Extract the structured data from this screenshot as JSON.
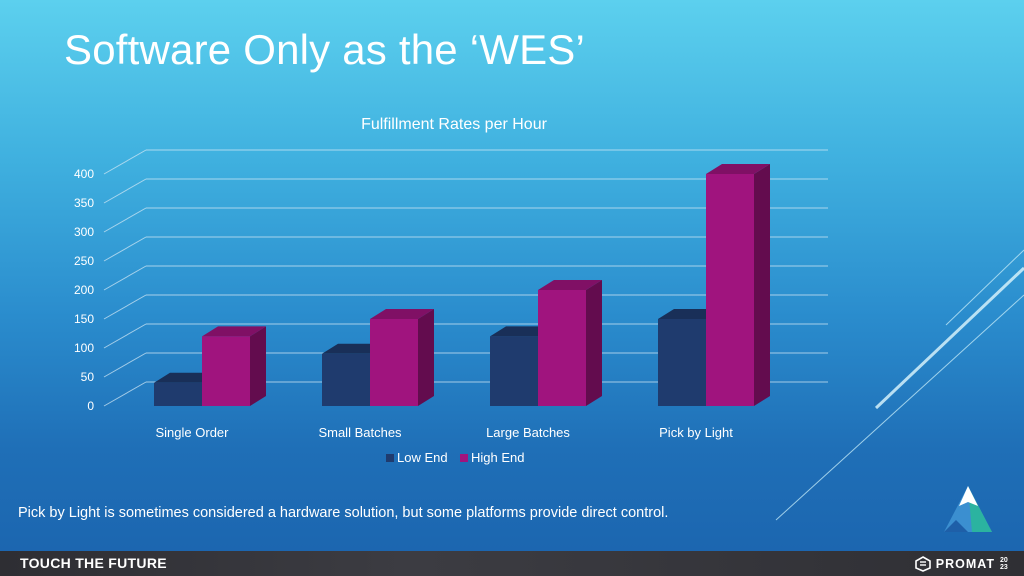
{
  "slide": {
    "title": "Software Only as the ‘WES’",
    "caption": "Pick by Light is sometimes considered a hardware solution, but some platforms provide direct control.",
    "footer_slogan": "TOUCH THE FUTURE",
    "brand": "PROMAT",
    "brand_year": "20 23"
  },
  "colors": {
    "low_end": "#1f3b6e",
    "high_end": "#a0147e"
  },
  "chart_data": {
    "type": "bar",
    "title": "Fulfillment Rates per Hour",
    "xlabel": "",
    "ylabel": "",
    "categories": [
      "Single Order",
      "Small Batches",
      "Large Batches",
      "Pick by Light"
    ],
    "series": [
      {
        "name": "Low End",
        "values": [
          40,
          90,
          120,
          150
        ]
      },
      {
        "name": "High End",
        "values": [
          120,
          150,
          200,
          400
        ]
      }
    ],
    "ylim": [
      0,
      400
    ],
    "yticks": [
      "0",
      "50",
      "100",
      "150",
      "200",
      "250",
      "300",
      "350",
      "400"
    ],
    "grid": true,
    "legend": "bottom",
    "style": "3d-clustered"
  }
}
